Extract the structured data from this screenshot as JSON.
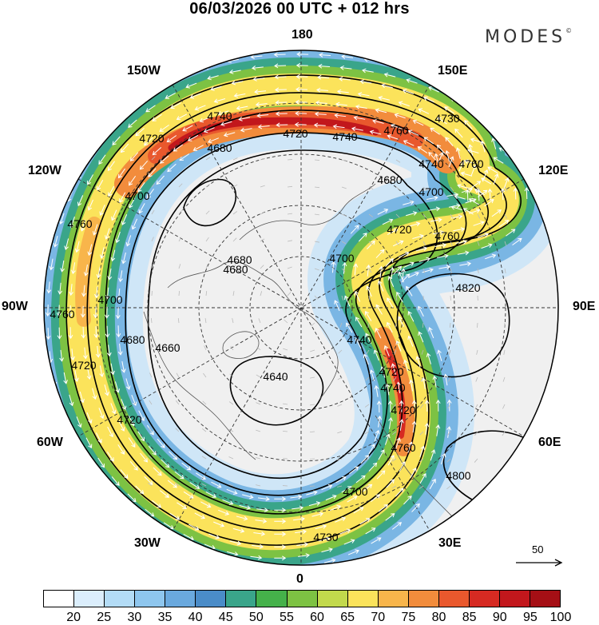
{
  "header": {
    "title": "06/03/2026  00 UTC  + 012 hrs",
    "brand": "MODES",
    "brand_mark": "©"
  },
  "map": {
    "projection": "north polar stereographic",
    "longitude_labels": [
      "180",
      "150E",
      "120E",
      "90E",
      "60E",
      "30E",
      "0",
      "30W",
      "60W",
      "90W",
      "120W",
      "150W"
    ],
    "contour_labels": [
      "4740",
      "4720",
      "4740",
      "4760",
      "4730",
      "4720",
      "4680",
      "4700",
      "4760",
      "4680",
      "4700",
      "4720",
      "4760",
      "4680",
      "4700",
      "4760",
      "4700",
      "4820",
      "4740",
      "4660",
      "4680",
      "4640",
      "4740",
      "4760",
      "4720",
      "4730",
      "4800",
      "4740",
      "4720",
      "4720",
      "4760",
      "4700",
      "4680",
      "4720"
    ],
    "reference_vector": "50"
  },
  "colorbar": {
    "colors": [
      "#ffffff",
      "#dbeefc",
      "#b3dcf6",
      "#8ec6ee",
      "#6aa9de",
      "#4a8cc8",
      "#3aa58a",
      "#45b14a",
      "#7dc243",
      "#c2d94c",
      "#fbe35b",
      "#f8b54b",
      "#f28c3c",
      "#e9582d",
      "#d62a22",
      "#c2171c",
      "#a50f15"
    ],
    "labels": [
      "20",
      "25",
      "30",
      "35",
      "40",
      "45",
      "50",
      "55",
      "60",
      "65",
      "70",
      "75",
      "80",
      "85",
      "90",
      "95",
      "100"
    ]
  }
}
